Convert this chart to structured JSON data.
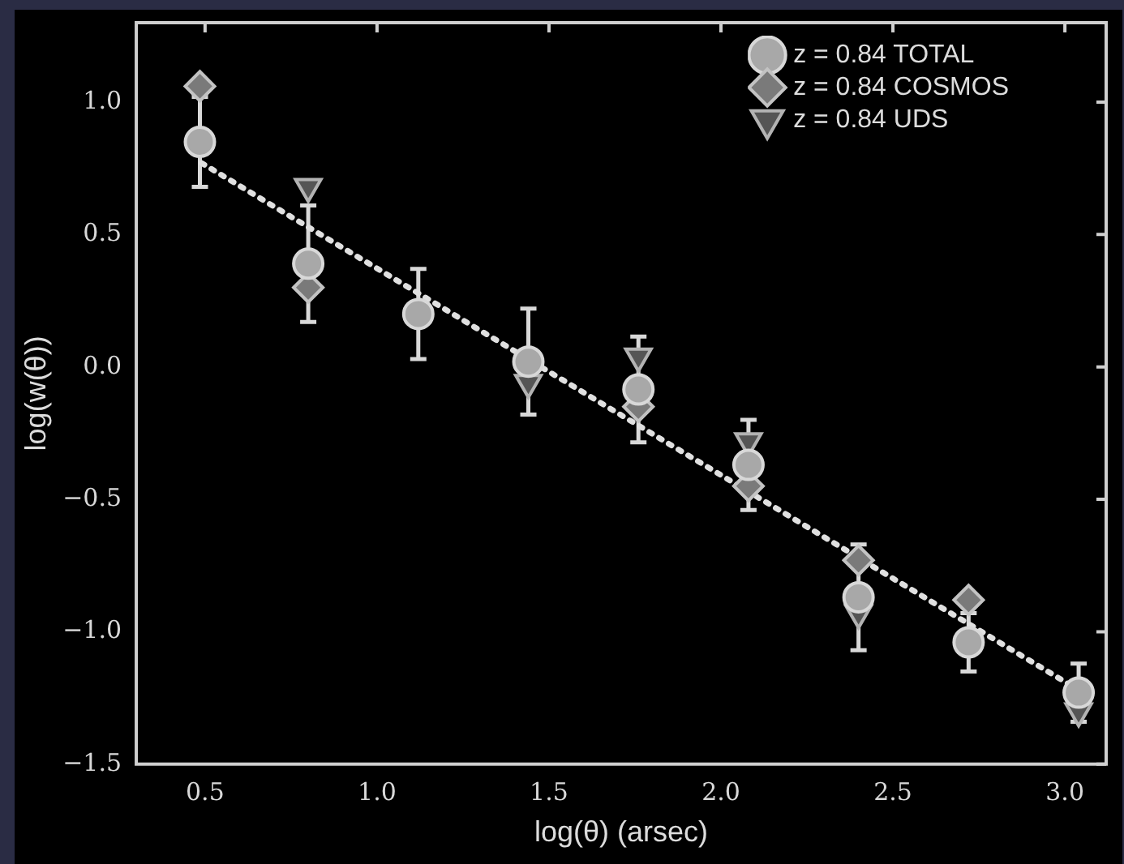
{
  "chart_data": {
    "type": "scatter",
    "xlabel": "log(θ) (arsec)",
    "ylabel": "log(w(θ))",
    "x": [
      0.485,
      0.8,
      1.12,
      1.44,
      1.76,
      2.08,
      2.4,
      2.72,
      3.04
    ],
    "series": [
      {
        "name": "z = 0.84 TOTAL",
        "color": "#a8a8a8",
        "marker": "circle",
        "values": [
          0.85,
          0.39,
          0.2,
          0.02,
          -0.085,
          -0.37,
          -0.87,
          -1.04,
          -1.23
        ],
        "errors": [
          0.17,
          0.22,
          0.17,
          0.2,
          0.2,
          0.17,
          0.2,
          0.11,
          0.11
        ]
      },
      {
        "name": "z = 0.84 COSMOS",
        "color": "#7a7a7a",
        "marker": "diamond",
        "values": [
          1.06,
          0.3,
          null,
          null,
          -0.15,
          -0.45,
          -0.73,
          -0.88,
          null
        ]
      },
      {
        "name": "z = 0.84 UDS",
        "color": "#555555",
        "marker": "triangle",
        "values": [
          null,
          0.68,
          null,
          -0.06,
          0.04,
          -0.28,
          -0.93,
          null,
          -1.3
        ]
      },
      {
        "type": "line",
        "color": "#e0e0e0",
        "marker": "none",
        "line_style": "dotted",
        "x": [
          0.49,
          3.04
        ],
        "values": [
          0.77,
          -1.22
        ]
      }
    ],
    "xlim": [
      0.3,
      3.12
    ],
    "xticks": [
      0.5,
      {
        "value": 1,
        "label": "1.0"
      },
      1.5,
      {
        "value": 2,
        "label": "2.0"
      },
      2.5,
      {
        "value": 3,
        "label": "3.0"
      }
    ],
    "ylim": [
      -1.5,
      1.3
    ],
    "yticks": [
      -1.5,
      {
        "value": -1,
        "label": "−1.0"
      },
      -0.5,
      {
        "value": 0,
        "label": "0.0"
      },
      0.5,
      {
        "value": 1,
        "label": "1.0"
      }
    ],
    "grid": false,
    "legend": "top right"
  }
}
